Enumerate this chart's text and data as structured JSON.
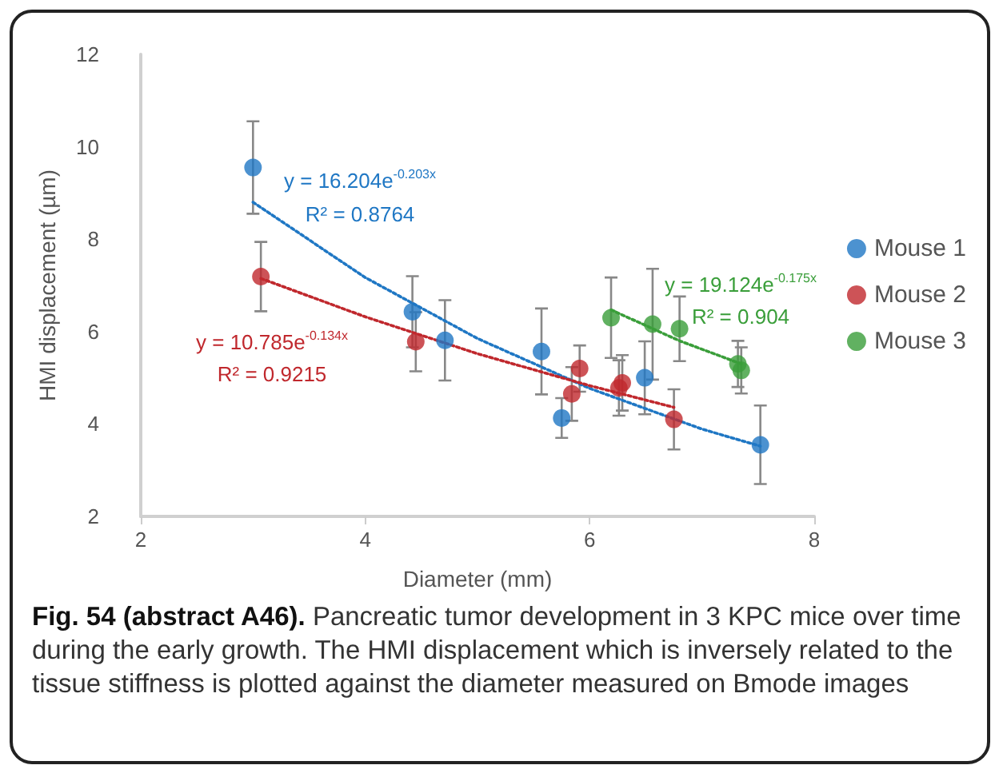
{
  "chart_data": {
    "type": "scatter",
    "xlabel": "Diameter (mm)",
    "ylabel": "HMI displacement (µm)",
    "xlim": [
      2,
      8
    ],
    "xticks": [
      2,
      4,
      6,
      8
    ],
    "ylim": [
      2,
      12
    ],
    "yticks": [
      2,
      4,
      6,
      8,
      10,
      12
    ],
    "grid": false,
    "legend": "right",
    "marker": "circle",
    "series": [
      {
        "name": "Mouse 1",
        "color": "#1f77c4",
        "x": [
          3.0,
          4.42,
          4.71,
          5.57,
          5.75,
          6.49,
          7.52
        ],
        "values": [
          9.55,
          6.43,
          5.81,
          5.57,
          4.13,
          5.0,
          3.55
        ],
        "errors": [
          1.0,
          0.77,
          0.87,
          0.93,
          0.43,
          0.79,
          0.85
        ]
      },
      {
        "name": "Mouse 2",
        "color": "#c0282d",
        "x": [
          3.07,
          4.45,
          5.84,
          5.91,
          6.26,
          6.29,
          6.75
        ],
        "values": [
          7.19,
          5.78,
          4.65,
          5.2,
          4.78,
          4.89,
          4.1
        ],
        "errors": [
          0.75,
          0.64,
          0.58,
          0.5,
          0.6,
          0.6,
          0.65
        ]
      },
      {
        "name": "Mouse 3",
        "color": "#3a9e3a",
        "x": [
          6.19,
          6.56,
          6.8,
          7.32,
          7.35
        ],
        "values": [
          6.3,
          6.16,
          6.06,
          5.3,
          5.16
        ],
        "errors": [
          0.87,
          1.2,
          0.7,
          0.5,
          0.5
        ]
      },
      {
        "type": "line",
        "color": "#1f77c4",
        "line_style": "dotted",
        "marker": "none",
        "x": [
          3.0,
          4,
          5,
          6,
          7,
          7.52
        ],
        "values": [
          8.8,
          7.17,
          5.85,
          4.77,
          3.89,
          3.52
        ]
      },
      {
        "type": "line",
        "color": "#c0282d",
        "line_style": "dotted",
        "marker": "none",
        "x": [
          3.07,
          4,
          5,
          6,
          6.75
        ],
        "values": [
          7.15,
          6.32,
          5.52,
          4.83,
          4.36
        ]
      },
      {
        "type": "line",
        "color": "#3a9e3a",
        "line_style": "dotted",
        "marker": "none",
        "x": [
          6.19,
          6.8,
          7.35
        ],
        "values": [
          6.47,
          5.8,
          5.3
        ]
      }
    ],
    "annotations": [
      "y = 16.204e$^{-0.203x}$",
      "R² = 0.8764",
      "y = 10.785e$^{-0.134x}$",
      "R² = 0.9215",
      "y = 19.124e$^{-0.175x}$",
      "R² = 0.904",
      "Fig. 54 (abstract A46).",
      "Pancreatic tumor development in 3 KPC mice over time during the early growth. The HMI displacement which is inversely related to the tissue stiffness is plotted against the diameter measured on Bmode images"
    ]
  }
}
